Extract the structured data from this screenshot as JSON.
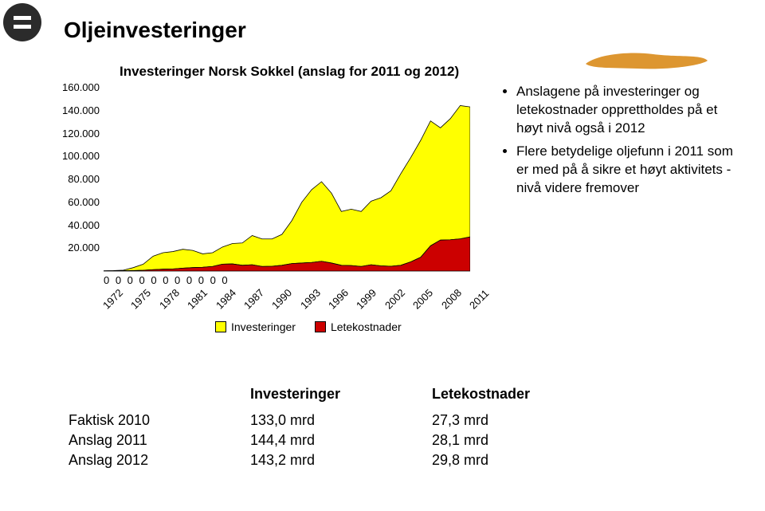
{
  "title": "Oljeinvesteringer",
  "chart": {
    "type": "area",
    "title": "Investeringer Norsk Sokkel (anslag for 2011 og 2012)",
    "ylim": [
      0,
      160000
    ],
    "ytick_step": 20000,
    "y_axis_labels": [
      "160.000",
      "140.000",
      "120.000",
      "100.000",
      "80.000",
      "60.000",
      "40.000",
      "20.000"
    ],
    "x_labels": [
      "1972",
      "1975",
      "1978",
      "1981",
      "1984",
      "1987",
      "1990",
      "1993",
      "1996",
      "1999",
      "2002",
      "2005",
      "2008",
      "2011"
    ],
    "zero_row": "0  0 0 0 0 0 0 0 0 0 0",
    "series": {
      "investeringer": {
        "label": "Investeringer",
        "color": "#ffff00",
        "stroke": "#000000",
        "values": [
          200,
          400,
          800,
          3000,
          6000,
          13000,
          16000,
          17000,
          19000,
          18000,
          15000,
          16000,
          21000,
          24000,
          24500,
          31000,
          28000,
          28000,
          32000,
          44000,
          60000,
          71000,
          78000,
          68000,
          52000,
          54000,
          52000,
          61000,
          64000,
          70000,
          85000,
          99000,
          114000,
          131000,
          125000,
          133000,
          144400,
          143200
        ]
      },
      "letekostnader": {
        "label": "Letekostnader",
        "color": "#cc0000",
        "stroke": "#000000",
        "values": [
          100,
          150,
          250,
          400,
          700,
          1200,
          1600,
          1800,
          2500,
          3000,
          3300,
          4000,
          6000,
          6200,
          5000,
          5500,
          4000,
          4200,
          5000,
          6500,
          7000,
          7500,
          8500,
          7000,
          5000,
          4800,
          4000,
          5500,
          4500,
          4200,
          5000,
          8000,
          12000,
          22000,
          27000,
          27300,
          28100,
          29800
        ]
      }
    },
    "legend_labels": [
      "Investeringer",
      "Letekostnader"
    ],
    "background_color": "#ffffff",
    "grid_color": "#e5e5e5"
  },
  "bullets": [
    "Anslagene på investeringer og letekostnader opprettholdes på et høyt nivå også i 2012",
    "Flere betydelige oljefunn i 2011 som er med på å sikre et høyt aktivitets -nivå  videre fremover"
  ],
  "table": {
    "headers": [
      "",
      "Investeringer",
      "Letekostnader"
    ],
    "rows": [
      [
        "Faktisk 2010",
        "133,0 mrd",
        "27,3 mrd"
      ],
      [
        "Anslag 2011",
        "144,4 mrd",
        "28,1 mrd"
      ],
      [
        "Anslag 2012",
        "143,2 mrd",
        "29,8 mrd"
      ]
    ]
  },
  "brush_color": "#d98b1a"
}
